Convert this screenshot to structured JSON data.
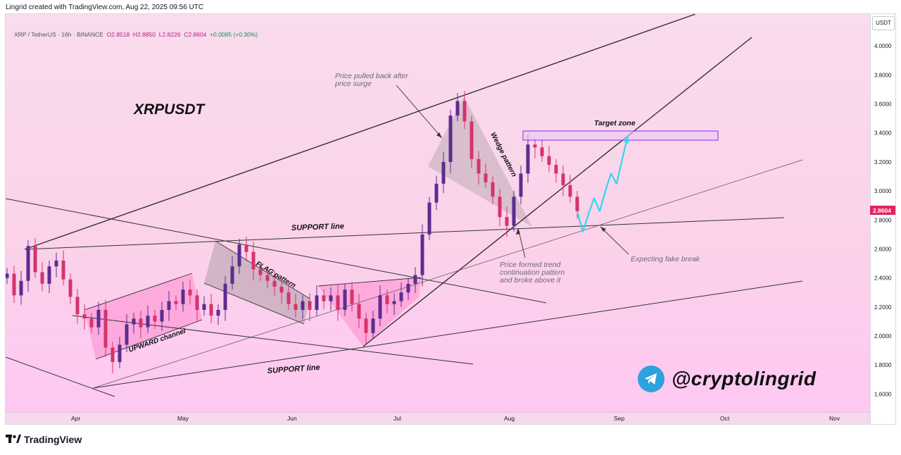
{
  "header": {
    "created_by": "Lingrid created with TradingView.com, Aug 22, 2025 09:56 UTC",
    "legend_symbol": "XRP / TetherUS · 16h · BINANCE",
    "legend_open": "O2.8518",
    "legend_high": "H2.8850",
    "legend_low": "L2.8226",
    "legend_close": "C2.8604",
    "legend_change": "+0.0085 (+0.30%)"
  },
  "chart_data": {
    "type": "candlestick",
    "title": "XRPUSDT",
    "currency": "USDT",
    "last_price": "2.8604",
    "ylim": [
      1.5,
      4.2
    ],
    "y_ticks": [
      "4.0000",
      "3.8000",
      "3.6000",
      "3.4000",
      "3.2000",
      "3.0000",
      "2.8000",
      "2.6000",
      "2.4000",
      "2.2000",
      "2.0000",
      "1.8000",
      "1.6000"
    ],
    "x_ticks": [
      "Apr",
      "May",
      "Jun",
      "Jul",
      "Aug",
      "Sep",
      "Oct",
      "Nov"
    ],
    "closes": [
      2.43,
      2.28,
      2.38,
      2.62,
      2.44,
      2.36,
      2.48,
      2.52,
      2.39,
      2.27,
      2.15,
      2.12,
      2.06,
      2.18,
      1.92,
      1.82,
      1.94,
      2.08,
      2.12,
      2.06,
      2.14,
      2.1,
      2.18,
      2.24,
      2.22,
      2.32,
      2.28,
      2.18,
      2.22,
      2.14,
      2.18,
      2.36,
      2.48,
      2.63,
      2.58,
      2.46,
      2.42,
      2.38,
      2.34,
      2.3,
      2.22,
      2.18,
      2.24,
      2.18,
      2.28,
      2.24,
      2.28,
      2.18,
      2.32,
      2.22,
      2.12,
      2.02,
      2.12,
      2.28,
      2.22,
      2.24,
      2.3,
      2.36,
      2.42,
      2.7,
      2.92,
      3.05,
      3.2,
      3.52,
      3.62,
      3.48,
      3.22,
      3.12,
      3.06,
      2.96,
      2.82,
      2.76,
      2.96,
      3.12,
      3.32,
      3.3,
      3.24,
      3.18,
      3.12,
      3.04,
      2.96,
      2.86
    ],
    "series": [
      {
        "name": "Expected path",
        "values": [
          2.86,
          2.72,
          2.84,
          2.95,
          2.86,
          3.0,
          3.12,
          3.05,
          3.22,
          3.38
        ]
      }
    ],
    "annotations": {
      "support_line_upper": "SUPPORT line",
      "support_line_lower": "SUPPORT line",
      "upward_channel": "UPWARD channel",
      "flag_pattern": "FLAG pattern",
      "wedge_pattern": "Wedge pattern",
      "target_zone": "Target zone",
      "pullback_note_line1": "Price pulled back after",
      "pullback_note_line2": "price surge",
      "trend_note_line1": "Price formed trend",
      "trend_note_line2": "continuation pattern",
      "trend_note_line3": "and broke above it",
      "fake_break_note": "Expecting fake break"
    },
    "colors": {
      "up_candle": "#5b2d8f",
      "down_candle": "#d6336c",
      "pattern_fill": "#ff7fc9",
      "flag_fill": "#b8a8b0",
      "projection": "#33d6f0",
      "price_tag": "#e0245e"
    }
  },
  "branding": {
    "handle": "@cryptolingrid",
    "telegram_icon": "telegram-icon",
    "footer_logo": "tradingview-logo",
    "footer_text": "TradingView"
  }
}
